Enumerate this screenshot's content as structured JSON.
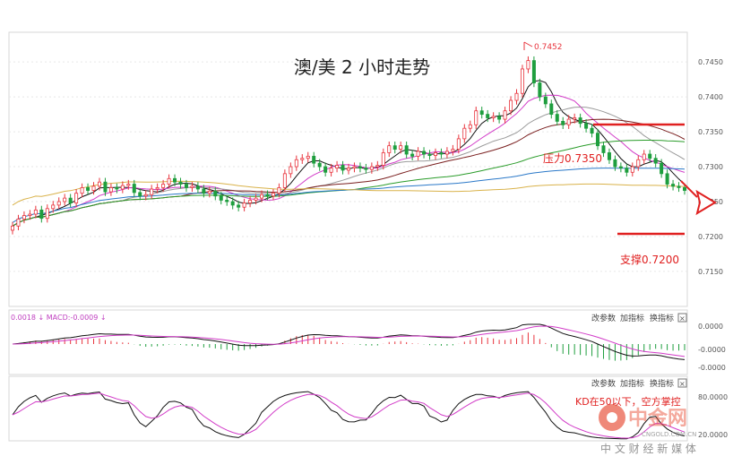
{
  "main_title": "澳/美 2 小时走势",
  "peak_label": "0.7452",
  "resistance_label": "压力0.7350",
  "support_label": "支撑0.7200",
  "macd_header": "0.0018 ↓ MACD:-0.0009 ↓",
  "toolbar_macd": [
    "改参数",
    "加指标",
    "换指标",
    "×"
  ],
  "toolbar_kd": [
    "改参数",
    "加指标",
    "换指标",
    "×"
  ],
  "kd_annotation": "KD在50以下，空方掌控",
  "watermark": {
    "brand": "中金网",
    "domain": "CNGOLD.COM.CN",
    "slogan": "中 文 财 经 新 媒 体"
  },
  "colors": {
    "up": "#e8343d",
    "down": "#1e9e3e",
    "resistance": "#e02020",
    "support": "#e02020",
    "arrow": "#e02020",
    "annotation": "#e02020"
  },
  "chart_data": [
    {
      "type": "candlestick",
      "ylim": [
        0.7105,
        0.749
      ],
      "yticks": [
        0.715,
        0.72,
        0.725,
        0.73,
        0.735,
        0.74,
        0.745
      ],
      "ytick_labels": [
        "0.7150",
        "0.7200",
        "0.7250",
        "0.7300",
        "0.7350",
        "0.7400",
        "0.7450"
      ],
      "close": [
        0.7215,
        0.7225,
        0.723,
        0.7232,
        0.7238,
        0.7226,
        0.724,
        0.7245,
        0.725,
        0.7255,
        0.7248,
        0.7262,
        0.727,
        0.7266,
        0.7272,
        0.7278,
        0.7264,
        0.727,
        0.7268,
        0.7273,
        0.7275,
        0.7263,
        0.7258,
        0.726,
        0.7268,
        0.727,
        0.7275,
        0.7283,
        0.7278,
        0.7275,
        0.727,
        0.7272,
        0.7268,
        0.7262,
        0.7265,
        0.7258,
        0.7252,
        0.725,
        0.7245,
        0.7242,
        0.7248,
        0.7252,
        0.7255,
        0.726,
        0.7258,
        0.7262,
        0.727,
        0.729,
        0.73,
        0.731,
        0.7312,
        0.7315,
        0.7305,
        0.73,
        0.7292,
        0.7298,
        0.7302,
        0.7295,
        0.7298,
        0.73,
        0.7298,
        0.7296,
        0.73,
        0.7302,
        0.732,
        0.733,
        0.7325,
        0.733,
        0.7318,
        0.7315,
        0.7322,
        0.7318,
        0.7316,
        0.732,
        0.7318,
        0.7322,
        0.7325,
        0.734,
        0.7355,
        0.736,
        0.738,
        0.7375,
        0.737,
        0.7372,
        0.7368,
        0.738,
        0.7395,
        0.7405,
        0.744,
        0.7452,
        0.742,
        0.74,
        0.739,
        0.7375,
        0.7365,
        0.736,
        0.7368,
        0.737,
        0.7362,
        0.7355,
        0.7348,
        0.733,
        0.732,
        0.731,
        0.73,
        0.7298,
        0.7292,
        0.73,
        0.731,
        0.7318,
        0.7312,
        0.7305,
        0.729,
        0.7275,
        0.7272,
        0.727,
        0.7266
      ],
      "ma_periods": [
        5,
        10,
        20,
        30,
        60,
        120,
        200
      ],
      "resistance": 0.735,
      "support": 0.72,
      "peak": 0.7452
    },
    {
      "type": "macd",
      "ytick_labels": [
        "0.0000",
        "-0.0000",
        "-0.0000"
      ]
    },
    {
      "type": "kd",
      "ytick_labels": [
        "80.0000",
        "20.0000"
      ]
    }
  ]
}
